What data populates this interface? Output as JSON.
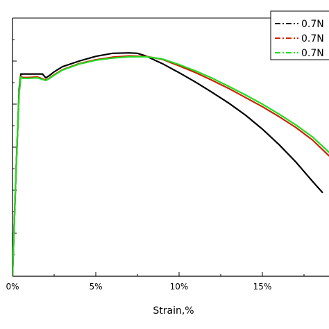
{
  "chart_data": {
    "type": "line",
    "xlabel": "Strain,%",
    "ylabel": "",
    "xlim": [
      0,
      19
    ],
    "ylim": [
      0,
      600
    ],
    "x_ticks": [
      0,
      5,
      10,
      15
    ],
    "x_tick_labels": [
      "0%",
      "5%",
      "10%",
      "15%"
    ],
    "y_ticks": [
      0,
      100,
      200,
      300,
      400,
      500
    ],
    "grid": false,
    "legend_position": "top-right",
    "series": [
      {
        "name": "0.7N",
        "color": "#000000",
        "dash": "dash-dot",
        "x": [
          0,
          0.2,
          0.4,
          0.5,
          0.6,
          1.0,
          1.5,
          1.8,
          2.0,
          2.2,
          2.5,
          3,
          4,
          5,
          6,
          7,
          7.5,
          8,
          9,
          10,
          11,
          12,
          13,
          14,
          15,
          16,
          17,
          18,
          18.6
        ],
        "y": [
          0,
          230,
          435,
          470,
          470,
          470,
          470,
          470,
          461,
          466,
          475,
          487,
          500,
          511,
          518,
          519,
          518,
          512,
          494,
          473,
          451,
          427,
          402,
          374,
          342,
          306,
          266,
          221,
          195
        ]
      },
      {
        "name": "0.7N",
        "color": "#cc2200",
        "dash": "dash-dot",
        "x": [
          0,
          0.2,
          0.4,
          0.5,
          0.6,
          1.0,
          1.5,
          2.0,
          2.2,
          2.5,
          3,
          4,
          5,
          6,
          7,
          8,
          9,
          10,
          11,
          12,
          13,
          14,
          15,
          16,
          17,
          18,
          19
        ],
        "y": [
          0,
          230,
          425,
          465,
          462,
          462,
          463,
          456,
          460,
          468,
          480,
          494,
          503,
          509,
          512,
          511,
          504,
          489,
          473,
          455,
          436,
          415,
          394,
          371,
          346,
          317,
          280
        ]
      },
      {
        "name": "0.7N",
        "color": "#22dd22",
        "dash": "dash-dot",
        "x": [
          0,
          0.2,
          0.4,
          0.5,
          0.6,
          1.0,
          1.5,
          2.0,
          2.2,
          2.5,
          3,
          4,
          5,
          6,
          7,
          8,
          9,
          10,
          11,
          12,
          13,
          14,
          15,
          16,
          17,
          18,
          19
        ],
        "y": [
          0,
          230,
          425,
          463,
          460,
          460,
          461,
          455,
          459,
          467,
          479,
          493,
          502,
          507,
          510,
          510,
          505,
          492,
          477,
          460,
          441,
          421,
          400,
          377,
          352,
          324,
          288
        ]
      }
    ]
  }
}
